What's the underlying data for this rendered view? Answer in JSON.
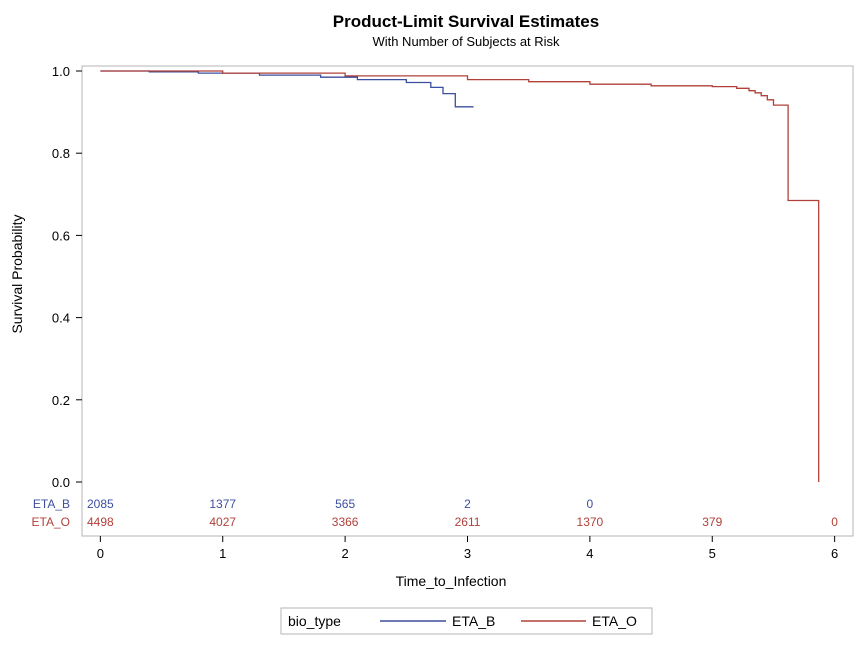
{
  "chart_data": {
    "type": "line",
    "title": "Product-Limit Survival Estimates",
    "subtitle": "With Number of Subjects at Risk",
    "xlabel": "Time_to_Infection",
    "ylabel": "Survival Probability",
    "xlim": [
      -0.15,
      6.15
    ],
    "ylim": [
      0.0,
      1.0
    ],
    "x_ticks": [
      "0",
      "1",
      "2",
      "3",
      "4",
      "5",
      "6"
    ],
    "y_ticks": [
      "0.0",
      "0.2",
      "0.4",
      "0.6",
      "0.8",
      "1.0"
    ],
    "grid": false,
    "legend": {
      "position": "bottom",
      "title": "bio_type",
      "entries": [
        "ETA_B",
        "ETA_O"
      ]
    },
    "colors": {
      "ETA_B": "#3c4f9e",
      "ETA_O": "#b1403a"
    },
    "series": [
      {
        "name": "ETA_B",
        "x": [
          0,
          0.4,
          0.8,
          1.3,
          1.8,
          2.1,
          2.5,
          2.7,
          2.8,
          2.9,
          3.05
        ],
        "y": [
          1.0,
          0.998,
          0.995,
          0.99,
          0.985,
          0.979,
          0.972,
          0.96,
          0.945,
          0.913,
          0.913
        ]
      },
      {
        "name": "ETA_O",
        "x": [
          0,
          1.0,
          2.0,
          3.0,
          3.5,
          4.0,
          4.5,
          5.0,
          5.2,
          5.3,
          5.35,
          5.4,
          5.45,
          5.5,
          5.62,
          5.87,
          5.87
        ],
        "y": [
          1.0,
          0.995,
          0.988,
          0.979,
          0.974,
          0.968,
          0.964,
          0.962,
          0.958,
          0.952,
          0.947,
          0.94,
          0.93,
          0.917,
          0.685,
          0.685,
          0.0
        ]
      }
    ],
    "risk_table": {
      "times": [
        0,
        1,
        2,
        3,
        4,
        5,
        6
      ],
      "rows": [
        {
          "label": "ETA_B",
          "counts": [
            "2085",
            "1377",
            "565",
            "2",
            "0",
            "",
            ""
          ]
        },
        {
          "label": "ETA_O",
          "counts": [
            "4498",
            "4027",
            "3366",
            "2611",
            "1370",
            "379",
            "0"
          ]
        }
      ]
    }
  }
}
